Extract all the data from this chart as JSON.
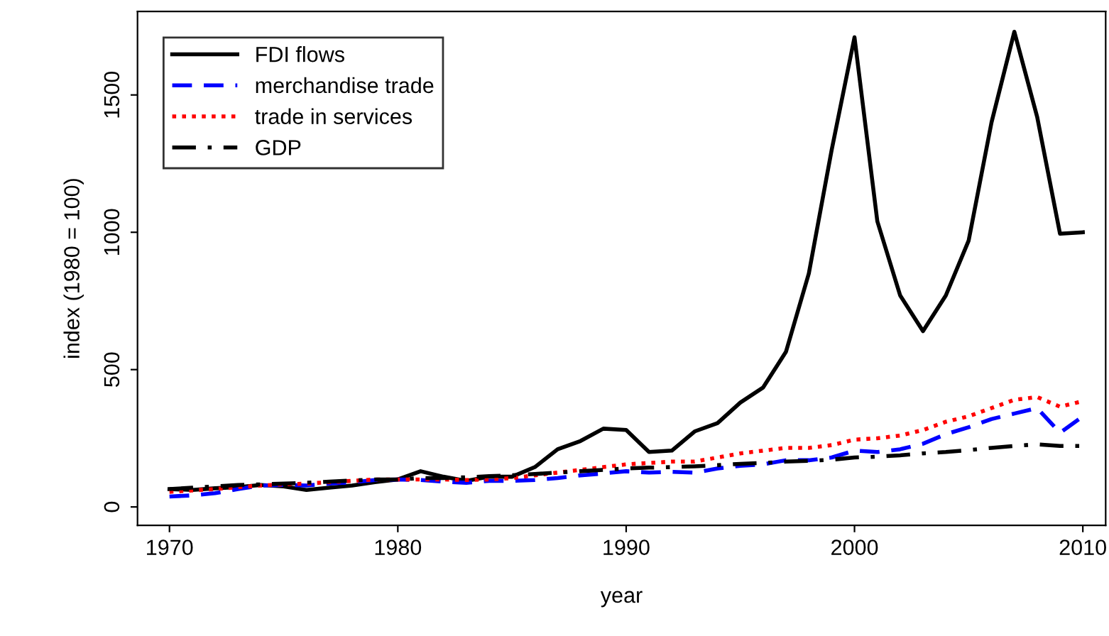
{
  "chart_data": {
    "type": "line",
    "xlabel": "year",
    "ylabel": "index (1980 = 100)",
    "x": [
      1970,
      1971,
      1972,
      1973,
      1974,
      1975,
      1976,
      1977,
      1978,
      1979,
      1980,
      1981,
      1982,
      1983,
      1984,
      1985,
      1986,
      1987,
      1988,
      1989,
      1990,
      1991,
      1992,
      1993,
      1994,
      1995,
      1996,
      1997,
      1998,
      1999,
      2000,
      2001,
      2002,
      2003,
      2004,
      2005,
      2006,
      2007,
      2008,
      2009,
      2010
    ],
    "series": [
      {
        "name": "FDI flows",
        "color": "#000000",
        "line_style": "solid",
        "values": [
          65,
          62,
          68,
          72,
          80,
          75,
          62,
          70,
          78,
          90,
          100,
          130,
          110,
          95,
          110,
          110,
          145,
          210,
          240,
          285,
          280,
          200,
          205,
          275,
          305,
          380,
          435,
          565,
          850,
          1300,
          1710,
          1040,
          770,
          640,
          770,
          970,
          1400,
          1730,
          1420,
          995,
          1000
        ]
      },
      {
        "name": "merchandise trade",
        "color": "#0000ff",
        "line_style": "dashed",
        "values": [
          38,
          42,
          50,
          65,
          78,
          80,
          78,
          85,
          90,
          98,
          100,
          98,
          92,
          88,
          95,
          95,
          98,
          105,
          115,
          122,
          130,
          125,
          128,
          125,
          140,
          150,
          155,
          170,
          170,
          180,
          205,
          200,
          210,
          230,
          265,
          290,
          320,
          340,
          360,
          270,
          330
        ]
      },
      {
        "name": "trade in services",
        "color": "#ff0000",
        "line_style": "dotted",
        "values": [
          55,
          60,
          65,
          72,
          78,
          82,
          85,
          90,
          95,
          100,
          100,
          100,
          100,
          98,
          100,
          105,
          115,
          125,
          135,
          145,
          155,
          160,
          165,
          165,
          180,
          195,
          205,
          215,
          215,
          225,
          245,
          250,
          260,
          280,
          310,
          330,
          360,
          390,
          400,
          365,
          385
        ]
      },
      {
        "name": "GDP",
        "color": "#000000",
        "line_style": "dashdot",
        "values": [
          65,
          70,
          75,
          80,
          82,
          85,
          88,
          92,
          96,
          100,
          100,
          105,
          105,
          108,
          112,
          115,
          120,
          125,
          130,
          135,
          140,
          143,
          145,
          148,
          152,
          157,
          160,
          165,
          168,
          172,
          180,
          183,
          188,
          195,
          200,
          207,
          215,
          222,
          228,
          222,
          222
        ]
      }
    ],
    "xlim": [
      1968.6,
      2011
    ],
    "ylim": [
      -67,
      1804
    ],
    "xticks": [
      1970,
      1980,
      1990,
      2000,
      2010
    ],
    "yticks": [
      0,
      500,
      1000,
      1500
    ],
    "grid": false,
    "legend": "top left"
  }
}
